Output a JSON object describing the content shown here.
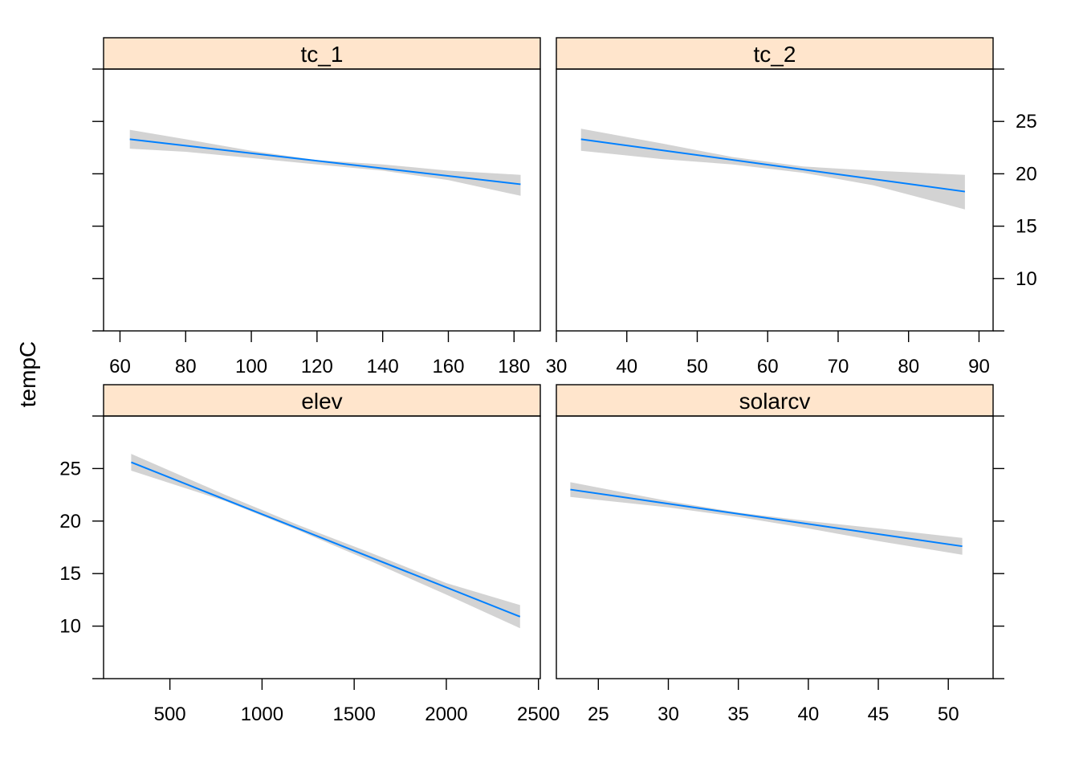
{
  "colors": {
    "strip_fill": "#ffe5cc",
    "line": "#0080ff",
    "band": "#d3d3d3"
  },
  "chart_data": {
    "type": "line",
    "ylabel": "tempC",
    "ylim": [
      5,
      30
    ],
    "yticks": [
      10,
      15,
      20,
      25
    ],
    "panels": [
      {
        "title": "tc_1",
        "xlim": [
          55,
          188
        ],
        "xticks": [
          60,
          80,
          100,
          120,
          140,
          160,
          180
        ],
        "line": {
          "x": [
            63,
            182
          ],
          "y": [
            23.3,
            19.0
          ]
        },
        "band": {
          "x": [
            63,
            80,
            100,
            120,
            140,
            160,
            182
          ],
          "lower": [
            22.4,
            22.1,
            21.5,
            20.9,
            20.3,
            19.4,
            17.9
          ],
          "upper": [
            24.2,
            23.3,
            22.2,
            21.3,
            20.9,
            20.3,
            19.9
          ]
        }
      },
      {
        "title": "tc_2",
        "xlim": [
          30,
          92
        ],
        "xticks": [
          30,
          40,
          50,
          60,
          70,
          80,
          90
        ],
        "line": {
          "x": [
            33.5,
            88
          ],
          "y": [
            23.3,
            18.3
          ]
        },
        "band": {
          "x": [
            33.5,
            45,
            55,
            65,
            75,
            88
          ],
          "lower": [
            22.2,
            21.4,
            20.9,
            20.1,
            18.9,
            16.6
          ],
          "upper": [
            24.3,
            22.9,
            21.6,
            20.7,
            20.3,
            19.9
          ]
        }
      },
      {
        "title": "elev",
        "xlim": [
          140,
          2510
        ],
        "xticks": [
          500,
          1000,
          1500,
          2000,
          2500
        ],
        "line": {
          "x": [
            290,
            2400
          ],
          "y": [
            25.6,
            10.9
          ]
        },
        "band": {
          "x": [
            290,
            800,
            1200,
            1600,
            2000,
            2400
          ],
          "lower": [
            24.8,
            21.9,
            19.1,
            16.1,
            13.0,
            9.8
          ],
          "upper": [
            26.4,
            22.5,
            19.6,
            16.9,
            14.1,
            12.0
          ]
        }
      },
      {
        "title": "solarcv",
        "xlim": [
          22.0,
          53.2
        ],
        "xticks": [
          25,
          30,
          35,
          40,
          45,
          50
        ],
        "line": {
          "x": [
            23,
            51
          ],
          "y": [
            23.0,
            17.6
          ]
        },
        "band": {
          "x": [
            23,
            30,
            35,
            40,
            45,
            51
          ],
          "lower": [
            22.3,
            21.3,
            20.4,
            19.3,
            18.1,
            16.8
          ],
          "upper": [
            23.7,
            21.9,
            20.8,
            20.0,
            19.3,
            18.4
          ]
        }
      }
    ]
  }
}
